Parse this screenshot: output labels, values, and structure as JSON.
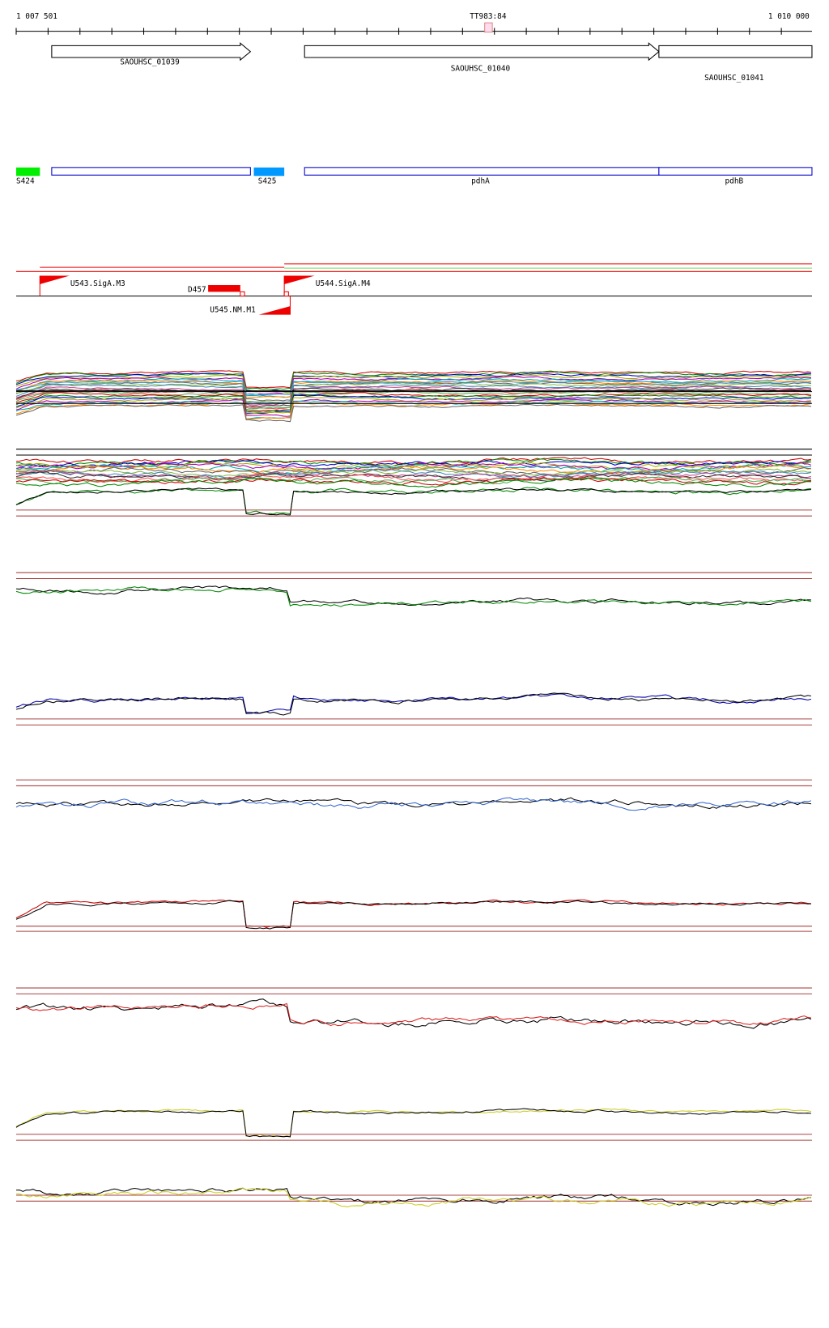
{
  "ruler": {
    "start": "1 007 501",
    "marker": "TT983:84",
    "end": "1 010 000"
  },
  "genes": [
    {
      "label": "SAOUHSC_01039"
    },
    {
      "label": "SAOUHSC_01040"
    },
    {
      "label": "SAOUHSC_01041"
    }
  ],
  "features": [
    {
      "label": "S424"
    },
    {
      "label": "S425"
    },
    {
      "label": "pdhA"
    },
    {
      "label": "pdhB"
    }
  ],
  "regulation": [
    {
      "label": "U543.SigA.M3"
    },
    {
      "label": "D457"
    },
    {
      "label": "U544.SigA.M4"
    },
    {
      "label": "U545.NM.M1"
    }
  ]
}
